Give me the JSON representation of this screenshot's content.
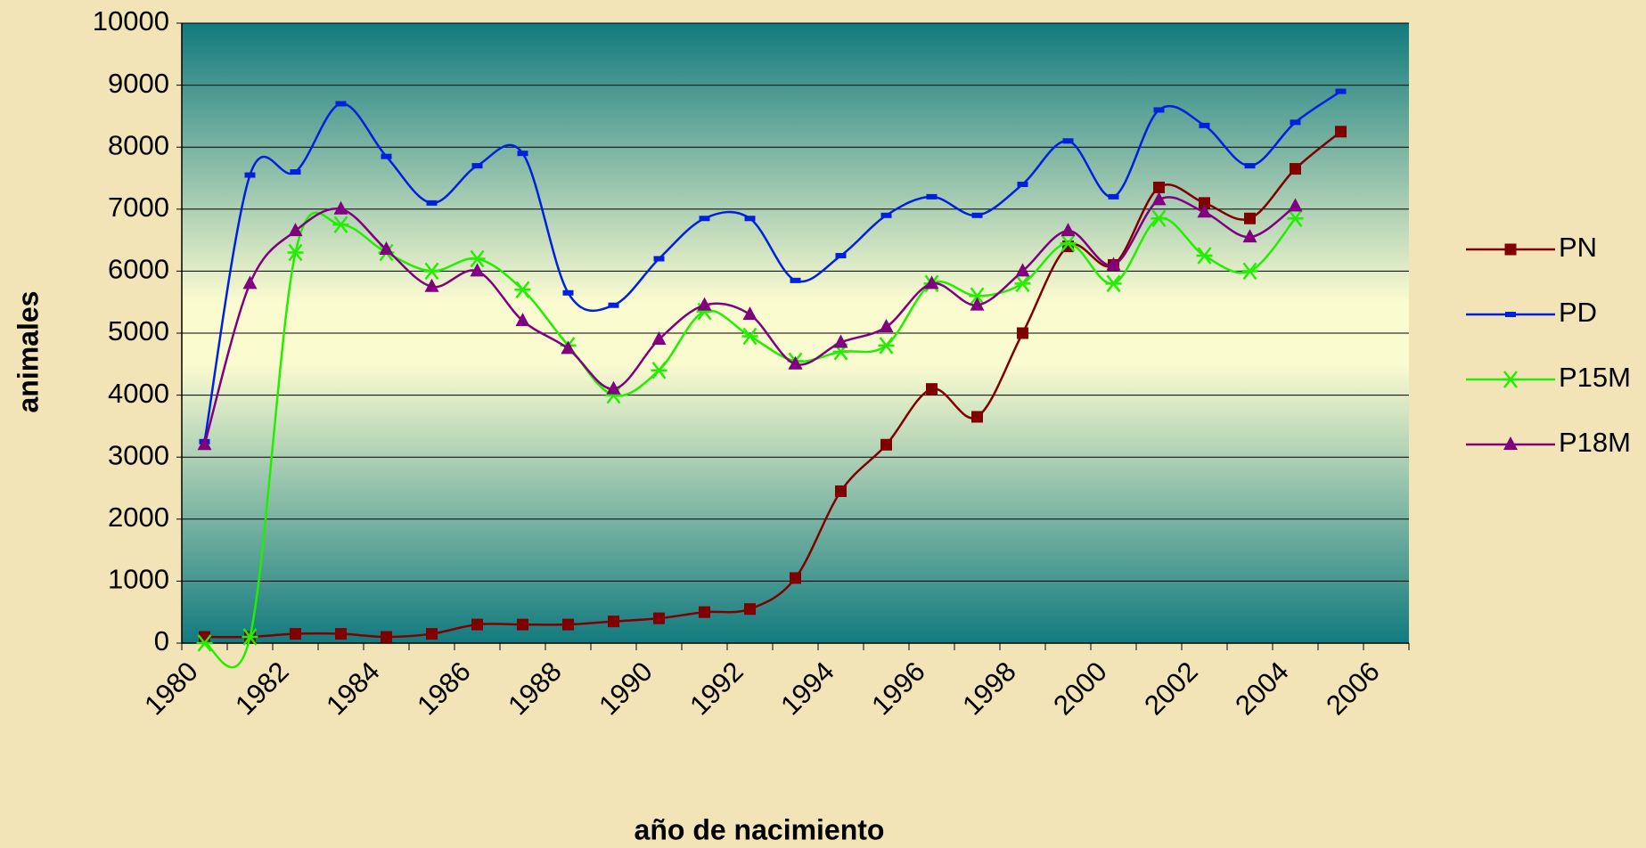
{
  "chart_data": {
    "type": "line",
    "x_label": "año de nacimiento",
    "y_label": "animales",
    "categories": [
      "1980",
      null,
      "1982",
      null,
      "1984",
      null,
      "1986",
      null,
      "1988",
      null,
      "1990",
      null,
      "1992",
      null,
      "1994",
      null,
      "1996",
      null,
      "1998",
      null,
      "2000",
      null,
      "2002",
      null,
      "2004",
      null,
      "2006"
    ],
    "ylim": [
      0,
      10000
    ],
    "yticks": [
      0,
      1000,
      2000,
      3000,
      4000,
      5000,
      6000,
      7000,
      8000,
      9000,
      10000
    ],
    "grid": true,
    "legend": "right",
    "series": [
      {
        "name": "PN",
        "color": "#800000",
        "marker": "square",
        "values": [
          100,
          100,
          150,
          150,
          100,
          150,
          300,
          300,
          300,
          350,
          400,
          500,
          550,
          1050,
          2450,
          3200,
          4100,
          3650,
          5000,
          6400,
          6100,
          7350,
          7100,
          6850,
          7650,
          8250,
          null
        ]
      },
      {
        "name": "PD",
        "color": "#0020e0",
        "marker": "dash",
        "values": [
          3250,
          7550,
          7600,
          8700,
          7850,
          7100,
          7700,
          7900,
          5650,
          5450,
          6200,
          6850,
          6850,
          5850,
          6250,
          6900,
          7200,
          6900,
          7400,
          8100,
          7200,
          8600,
          8350,
          7700,
          8400,
          8900,
          null
        ]
      },
      {
        "name": "P15M",
        "color": "#22ee00",
        "marker": "star",
        "values": [
          0,
          100,
          6300,
          6750,
          6300,
          6000,
          6200,
          5700,
          4800,
          4000,
          4400,
          5350,
          4950,
          4550,
          4700,
          4800,
          5800,
          5600,
          5800,
          6450,
          5800,
          6850,
          6250,
          6000,
          6850,
          null,
          null
        ]
      },
      {
        "name": "P18M",
        "color": "#800080",
        "marker": "triangle",
        "values": [
          3200,
          5800,
          6650,
          7000,
          6350,
          5750,
          6000,
          5200,
          4750,
          4100,
          4900,
          5450,
          5300,
          4500,
          4850,
          5100,
          5800,
          5450,
          6000,
          6650,
          6100,
          7150,
          6950,
          6550,
          7050,
          null,
          null
        ]
      }
    ]
  }
}
